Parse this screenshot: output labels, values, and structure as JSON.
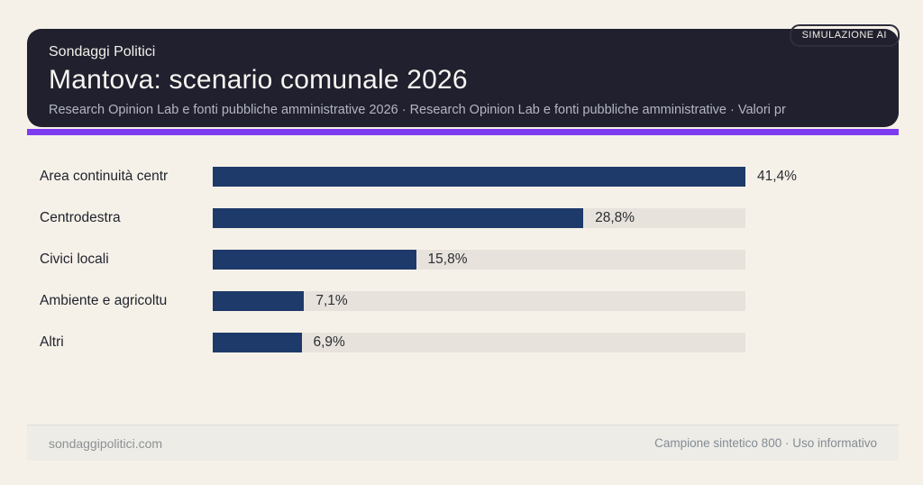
{
  "badge": {
    "label": "SIMULAZIONE AI"
  },
  "header": {
    "kicker": "Sondaggi Politici",
    "title": "Mantova: scenario comunale 2026",
    "subtitle": "Research Opinion Lab e fonti pubbliche amministrative 2026 · Research Opinion Lab e fonti pubbliche amministrative · Valori pr"
  },
  "chart_data": {
    "type": "bar",
    "orientation": "horizontal",
    "title": "Mantova: scenario comunale 2026",
    "categories": [
      "Area continuità centr",
      "Centrodestra",
      "Civici locali",
      "Ambiente e agricoltu",
      "Altri"
    ],
    "values": [
      41.4,
      28.8,
      15.8,
      7.1,
      6.9
    ],
    "value_labels": [
      "41,4%",
      "28,8%",
      "15,8%",
      "7,1%",
      "6,9%"
    ],
    "unit": "%",
    "axis_max": 41.4,
    "grid": false,
    "legend": false,
    "bar_color": "#1e3a6a",
    "track_color": "#e7e3dc"
  },
  "footer": {
    "left": "sondaggipolitici.com",
    "right": "Campione sintetico 800 · Uso informativo"
  },
  "colors": {
    "page_background": "#f6f1e8",
    "card_background": "#20202e",
    "accent": "#7d3bf0",
    "bar": "#1e3a6a",
    "bar_track": "#e7e3dc",
    "footer_band": "#edece6"
  }
}
